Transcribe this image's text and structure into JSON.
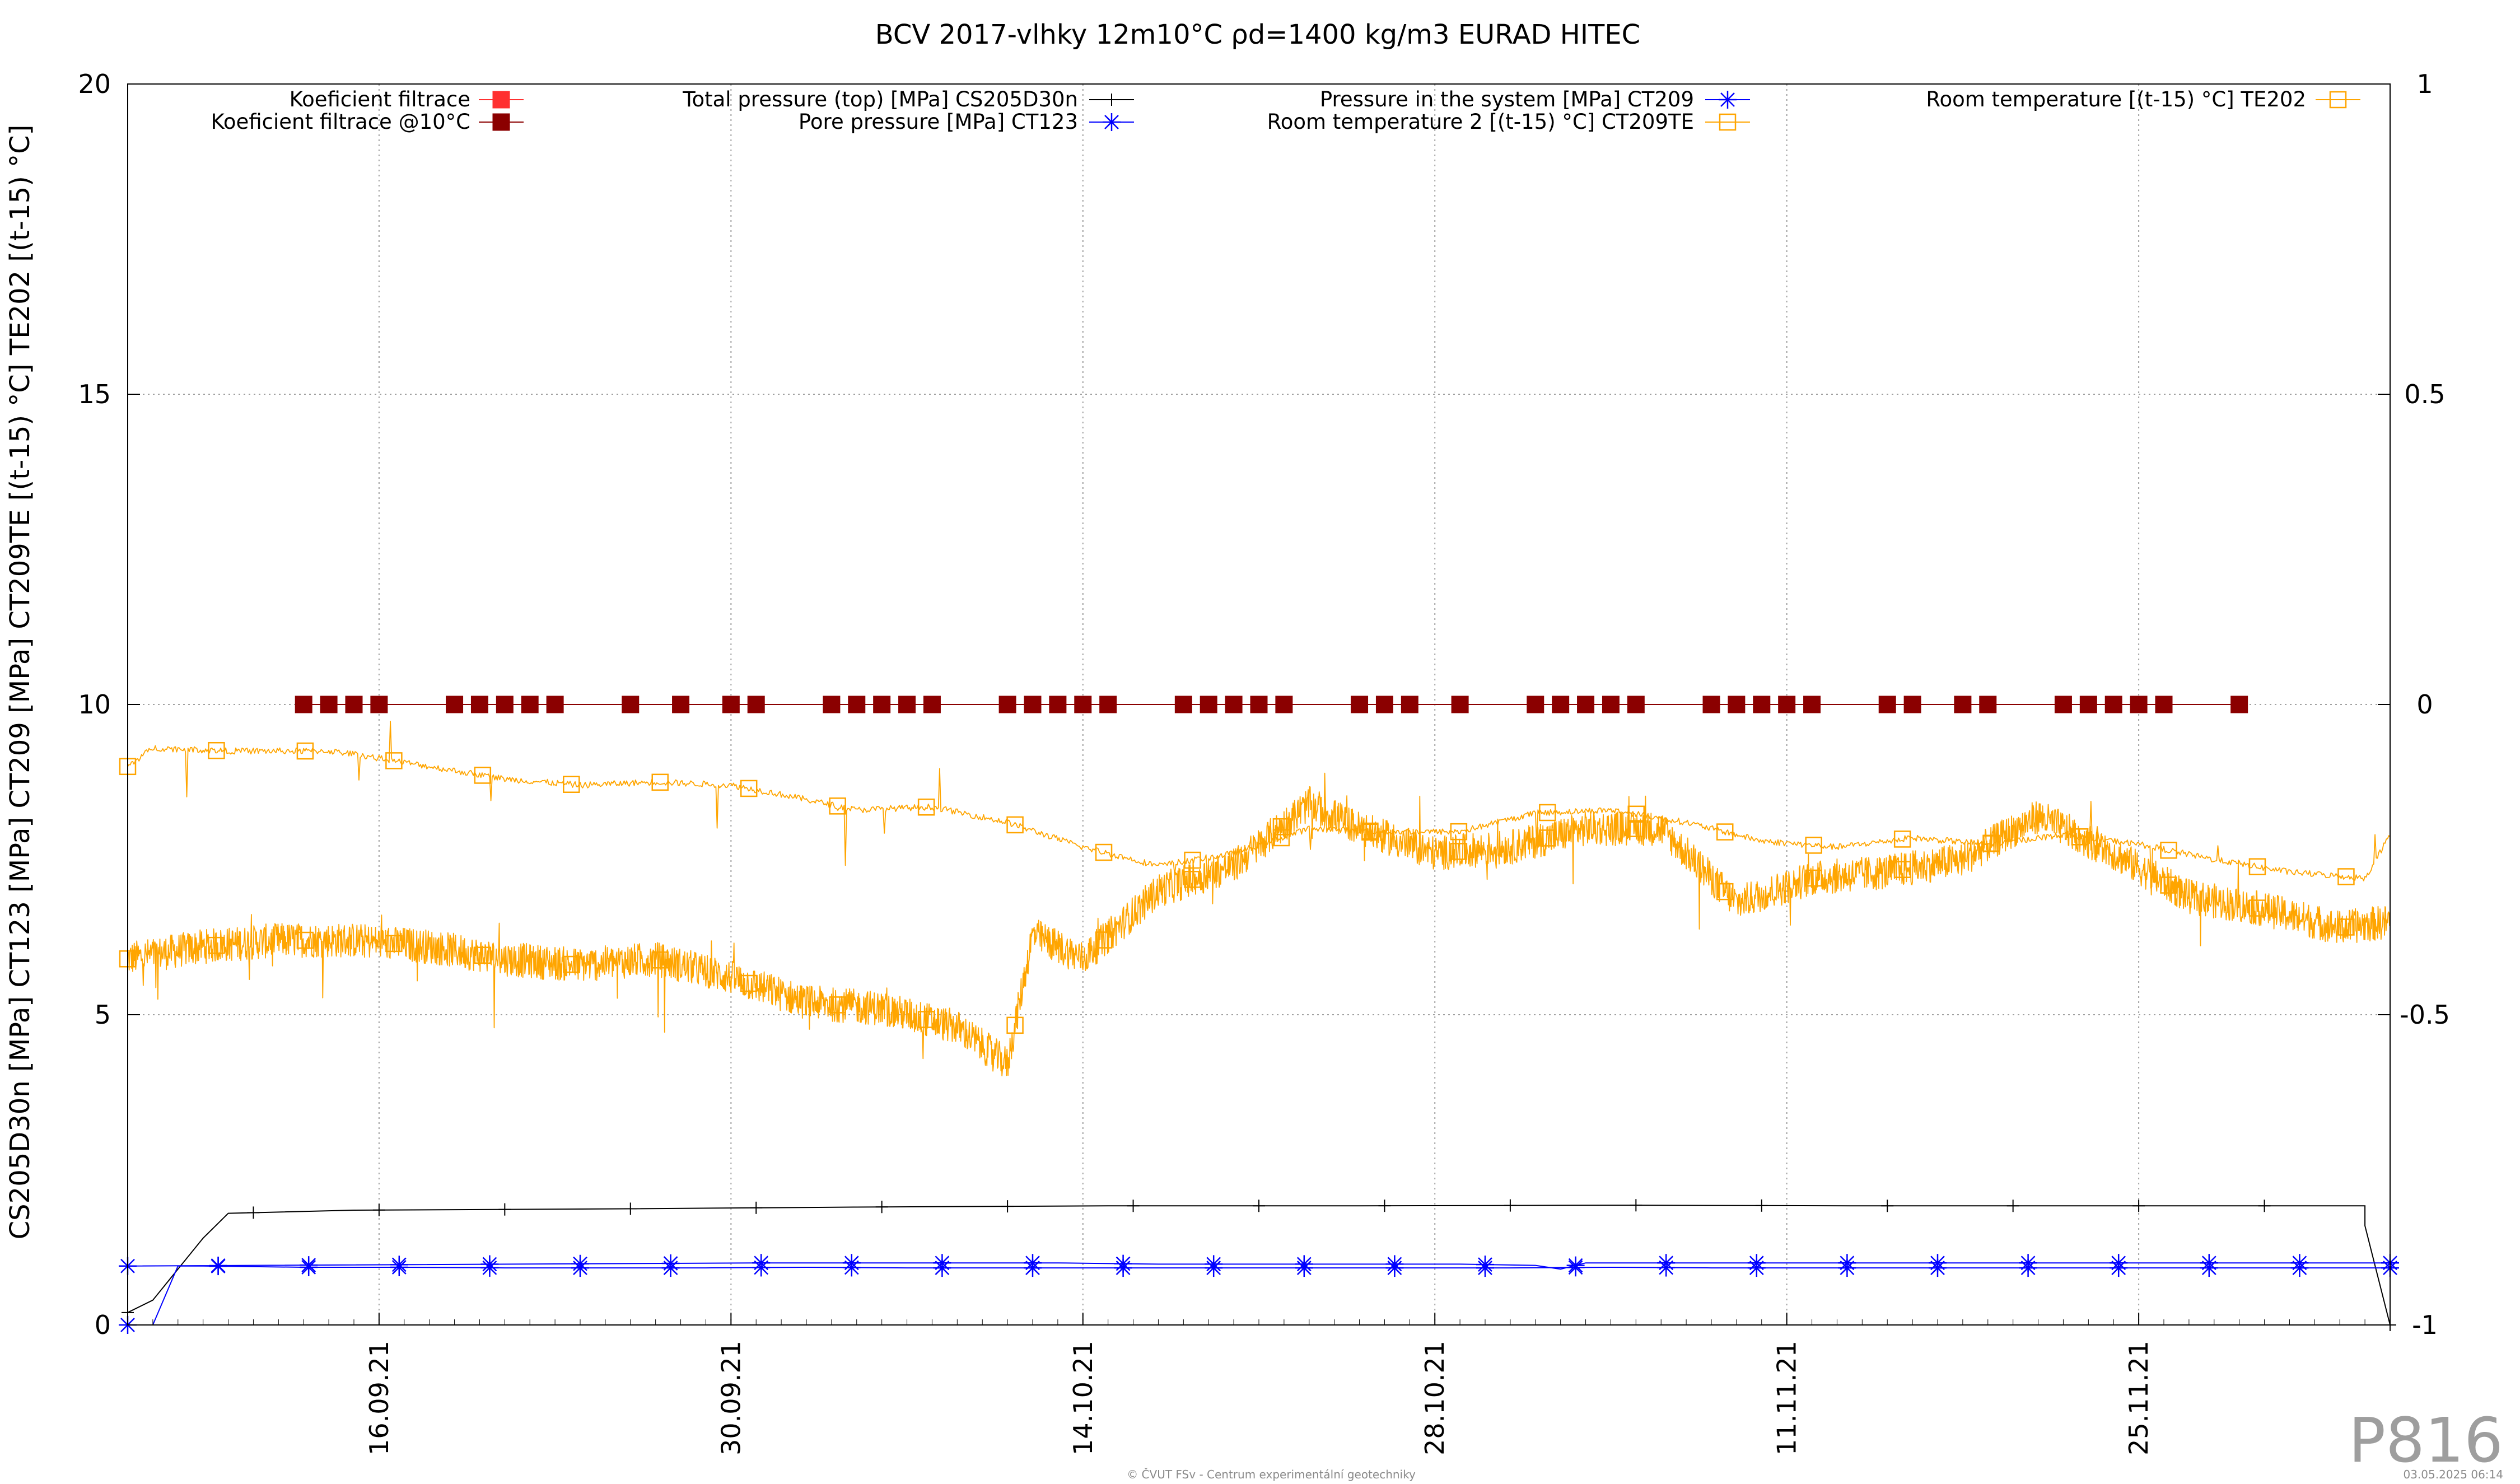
{
  "chart_data": {
    "type": "line",
    "title": "BCV 2017-vlhky 12m10°C ρd=1400 kg/m3 EURAD HITEC",
    "ylabel": "CS205D30n [MPa] CT123 [MPa] CT209 [MPa] CT209TE [(t-15) °C] TE202 [(t-15) °C]",
    "y2label": "",
    "xlabel": "",
    "x_range": [
      "2021-09-06",
      "2021-12-05"
    ],
    "ylim": [
      0,
      20
    ],
    "y2lim": [
      -1,
      1
    ],
    "y_ticks": [
      0,
      5,
      10,
      15,
      20
    ],
    "y2_ticks": [
      -1,
      -0.5,
      0,
      0.5,
      1
    ],
    "x_ticks": [
      "16.09.21",
      "30.09.21",
      "14.10.21",
      "28.10.21",
      "11.11.21",
      "25.11.21"
    ],
    "grid": true,
    "legend_position": "top",
    "series": [
      {
        "name": "Koeficient filtrace",
        "color": "#ff3030",
        "marker": "square",
        "axis": "y2",
        "values": []
      },
      {
        "name": "Koeficient filtrace @10°C",
        "color": "#8b0000",
        "marker": "square",
        "axis": "y2",
        "x": [
          "2021-09-13",
          "2021-09-14",
          "2021-09-15",
          "2021-09-16",
          "2021-09-19",
          "2021-09-20",
          "2021-09-21",
          "2021-09-22",
          "2021-09-23",
          "2021-09-26",
          "2021-09-28",
          "2021-09-30",
          "2021-10-01",
          "2021-10-04",
          "2021-10-05",
          "2021-10-06",
          "2021-10-07",
          "2021-10-08",
          "2021-10-11",
          "2021-10-12",
          "2021-10-13",
          "2021-10-14",
          "2021-10-15",
          "2021-10-18",
          "2021-10-19",
          "2021-10-20",
          "2021-10-21",
          "2021-10-22",
          "2021-10-25",
          "2021-10-26",
          "2021-10-27",
          "2021-10-29",
          "2021-11-01",
          "2021-11-02",
          "2021-11-03",
          "2021-11-04",
          "2021-11-05",
          "2021-11-08",
          "2021-11-09",
          "2021-11-10",
          "2021-11-11",
          "2021-11-12",
          "2021-11-15",
          "2021-11-16",
          "2021-11-18",
          "2021-11-19",
          "2021-11-22",
          "2021-11-23",
          "2021-11-24",
          "2021-11-25",
          "2021-11-26",
          "2021-11-29"
        ],
        "values": [
          0,
          0,
          0,
          0,
          0,
          0,
          0,
          0,
          0,
          0,
          0,
          0,
          0,
          0,
          0,
          0,
          0,
          0,
          0,
          0,
          0,
          0,
          0,
          0,
          0,
          0,
          0,
          0,
          0,
          0,
          0,
          0,
          0,
          0,
          0,
          0,
          0,
          0,
          0,
          0,
          0,
          0,
          0,
          0,
          0,
          0,
          0,
          0,
          0,
          0,
          0,
          0
        ]
      },
      {
        "name": "Total pressure (top) [MPa] CS205D30n",
        "color": "#000000",
        "marker": "plus",
        "axis": "y",
        "x": [
          "2021-09-06",
          "2021-09-07",
          "2021-09-08",
          "2021-09-09",
          "2021-09-10",
          "2021-09-15",
          "2021-09-25",
          "2021-10-05",
          "2021-10-15",
          "2021-10-25",
          "2021-11-04",
          "2021-11-14",
          "2021-11-24",
          "2021-11-28",
          "2021-12-04",
          "2021-12-04",
          "2021-12-05"
        ],
        "values": [
          0.2,
          0.4,
          0.9,
          1.4,
          1.8,
          1.85,
          1.87,
          1.9,
          1.92,
          1.92,
          1.93,
          1.92,
          1.92,
          1.92,
          1.92,
          1.6,
          0.0
        ]
      },
      {
        "name": "Pore pressure [MPa] CT123",
        "color": "#0000ff",
        "marker": "star",
        "axis": "y",
        "x": [
          "2021-09-06",
          "2021-09-07",
          "2021-09-08",
          "2021-09-09",
          "2021-09-13",
          "2021-09-17",
          "2021-09-21",
          "2021-09-25",
          "2021-09-29",
          "2021-10-03",
          "2021-10-07",
          "2021-10-11",
          "2021-10-15",
          "2021-10-19",
          "2021-10-23",
          "2021-10-27",
          "2021-10-31",
          "2021-11-04",
          "2021-11-08",
          "2021-11-12",
          "2021-11-16",
          "2021-11-20",
          "2021-11-24",
          "2021-11-28",
          "2021-12-02",
          "2021-12-05"
        ],
        "values": [
          0.0,
          0.0,
          0.95,
          0.95,
          0.93,
          0.93,
          0.92,
          0.92,
          0.92,
          0.93,
          0.92,
          0.92,
          0.92,
          0.92,
          0.92,
          0.92,
          0.92,
          0.93,
          0.92,
          0.92,
          0.92,
          0.92,
          0.92,
          0.92,
          0.92,
          0.92
        ]
      },
      {
        "name": "Pressure in the system [MPa] CT209",
        "color": "#0000ff",
        "marker": "star",
        "axis": "y",
        "x": [
          "2021-09-06",
          "2021-10-01",
          "2021-10-05",
          "2021-10-09",
          "2021-10-13",
          "2021-10-17",
          "2021-10-21",
          "2021-10-25",
          "2021-10-29",
          "2021-11-01",
          "2021-11-02",
          "2021-11-03",
          "2021-11-07",
          "2021-11-11",
          "2021-11-15",
          "2021-11-19",
          "2021-11-23",
          "2021-11-27",
          "2021-12-01",
          "2021-12-05"
        ],
        "values": [
          0.95,
          1.0,
          1.0,
          1.0,
          1.0,
          0.98,
          0.98,
          0.98,
          0.98,
          0.96,
          0.9,
          1.0,
          1.0,
          1.0,
          1.0,
          1.0,
          1.0,
          1.0,
          1.0,
          1.0
        ]
      },
      {
        "name": "Room temperature 2 [(t-15) °C] CT209TE",
        "color": "#ffa500",
        "marker": "square-open",
        "axis": "y",
        "x": [
          "2021-09-06",
          "2021-09-09",
          "2021-09-12",
          "2021-09-15",
          "2021-09-18",
          "2021-09-21",
          "2021-09-24",
          "2021-09-27",
          "2021-09-30",
          "2021-10-03",
          "2021-10-06",
          "2021-10-09",
          "2021-10-11",
          "2021-10-12",
          "2021-10-14",
          "2021-10-17",
          "2021-10-20",
          "2021-10-23",
          "2021-10-25",
          "2021-10-28",
          "2021-10-31",
          "2021-11-03",
          "2021-11-06",
          "2021-11-09",
          "2021-11-12",
          "2021-11-15",
          "2021-11-18",
          "2021-11-21",
          "2021-11-24",
          "2021-11-27",
          "2021-11-30",
          "2021-12-03",
          "2021-12-05"
        ],
        "values": [
          5.9,
          6.1,
          6.2,
          6.2,
          6.1,
          5.9,
          5.8,
          5.9,
          5.6,
          5.2,
          5.1,
          4.8,
          4.2,
          6.3,
          5.9,
          7.0,
          7.4,
          8.4,
          8.0,
          7.6,
          7.7,
          8.0,
          8.0,
          6.8,
          7.2,
          7.3,
          7.5,
          8.2,
          7.6,
          6.9,
          6.7,
          6.4,
          6.5
        ]
      },
      {
        "name": "Room temperature [(t-15) °C] TE202",
        "color": "#ffa500",
        "marker": "square-open",
        "axis": "y",
        "x": [
          "2021-09-06",
          "2021-09-07",
          "2021-09-10",
          "2021-09-14",
          "2021-09-15",
          "2021-09-18",
          "2021-09-21",
          "2021-09-24",
          "2021-09-27",
          "2021-09-30",
          "2021-10-02",
          "2021-10-05",
          "2021-10-08",
          "2021-10-11",
          "2021-10-14",
          "2021-10-17",
          "2021-10-20",
          "2021-10-23",
          "2021-10-26",
          "2021-10-29",
          "2021-11-01",
          "2021-11-04",
          "2021-11-07",
          "2021-11-10",
          "2021-11-13",
          "2021-11-16",
          "2021-11-19",
          "2021-11-22",
          "2021-11-25",
          "2021-11-28",
          "2021-12-01",
          "2021-12-04",
          "2021-12-05"
        ],
        "values": [
          9.0,
          9.3,
          9.25,
          9.25,
          9.2,
          9.0,
          8.8,
          8.7,
          8.75,
          8.7,
          8.55,
          8.3,
          8.35,
          8.1,
          7.7,
          7.4,
          7.6,
          8.0,
          7.95,
          7.95,
          8.25,
          8.3,
          8.1,
          7.8,
          7.7,
          7.85,
          7.75,
          7.9,
          7.75,
          7.5,
          7.3,
          7.2,
          7.9
        ]
      }
    ]
  },
  "footer": {
    "watermark": "P816",
    "copyright": "© ČVUT FSv - Centrum experimentální geotechniky",
    "timestamp": "03.05.2025 06:14"
  }
}
